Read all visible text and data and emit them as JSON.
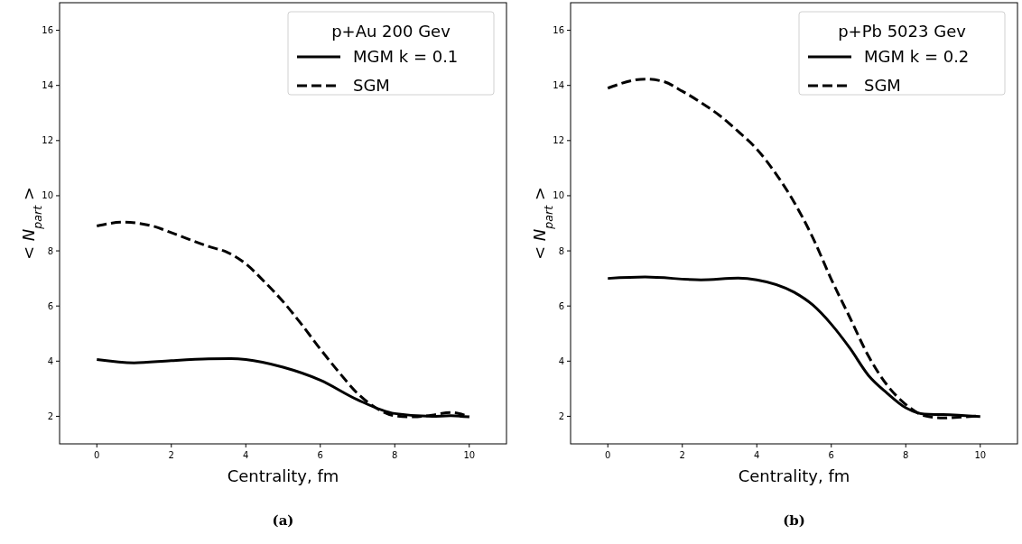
{
  "chart_data": [
    {
      "type": "line",
      "xlabel": "Centrality, fm",
      "ylabel": "< N$_{part}$ >",
      "legend_title": "p+Au 200 Gev",
      "legend": "top right",
      "grid": false,
      "xlim": [
        -1,
        11
      ],
      "ylim": [
        1,
        17
      ],
      "xticks": [
        0,
        2,
        4,
        6,
        8,
        10
      ],
      "yticks": [
        2,
        4,
        6,
        8,
        10,
        12,
        14,
        16
      ],
      "annotations": [
        "(a)"
      ],
      "series": [
        {
          "name": "MGM k = 0.1",
          "color": "#000000",
          "line_style": "solid",
          "x": [
            0,
            1,
            2,
            3,
            3.6,
            4,
            5,
            6,
            7,
            8,
            9,
            9.5,
            10
          ],
          "values": [
            4.06,
            3.94,
            4.02,
            4.08,
            4.09,
            4.06,
            3.78,
            3.31,
            2.6,
            2.1,
            2.0,
            2.02,
            1.98
          ]
        },
        {
          "name": "SGM",
          "color": "#000000",
          "line_style": "dashed",
          "x": [
            0,
            0.7,
            1.5,
            2,
            3,
            3.5,
            4,
            4.5,
            5,
            5.5,
            6,
            6.5,
            7,
            7.5,
            8,
            8.5,
            9,
            9.5,
            10
          ],
          "values": [
            8.9,
            9.04,
            8.9,
            8.66,
            8.16,
            7.95,
            7.53,
            6.88,
            6.16,
            5.33,
            4.44,
            3.6,
            2.83,
            2.3,
            2.02,
            1.98,
            2.04,
            2.14,
            1.98
          ]
        }
      ]
    },
    {
      "type": "line",
      "xlabel": "Centrality, fm",
      "ylabel": "< N$_{part}$ >",
      "legend_title": "p+Pb 5023 Gev",
      "legend": "top right",
      "grid": false,
      "xlim": [
        -1,
        11
      ],
      "ylim": [
        1,
        17
      ],
      "xticks": [
        0,
        2,
        4,
        6,
        8,
        10
      ],
      "yticks": [
        2,
        4,
        6,
        8,
        10,
        12,
        14,
        16
      ],
      "annotations": [
        "(b)"
      ],
      "series": [
        {
          "name": "MGM k = 0.2",
          "color": "#000000",
          "line_style": "solid",
          "x": [
            0,
            1,
            2.5,
            3.5,
            4,
            5,
            5.5,
            6,
            6.5,
            7,
            7.5,
            8,
            8.5,
            9,
            10
          ],
          "values": [
            7.0,
            7.05,
            6.95,
            7.01,
            6.95,
            6.5,
            6.04,
            5.34,
            4.47,
            3.48,
            2.84,
            2.31,
            2.08,
            2.06,
            1.99
          ]
        },
        {
          "name": "SGM",
          "color": "#000000",
          "line_style": "dashed",
          "x": [
            0,
            1,
            1.5,
            2,
            2.5,
            3,
            3.5,
            4,
            4.5,
            5,
            5.5,
            6,
            6.5,
            7,
            7.5,
            8,
            8.5,
            9,
            9.5,
            10
          ],
          "values": [
            13.9,
            14.23,
            14.14,
            13.79,
            13.38,
            12.91,
            12.33,
            11.69,
            10.82,
            9.77,
            8.49,
            6.97,
            5.58,
            4.18,
            3.13,
            2.43,
            2.02,
            1.94,
            1.97,
            2.02
          ]
        }
      ]
    }
  ]
}
